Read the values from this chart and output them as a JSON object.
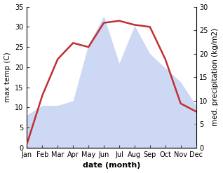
{
  "months": [
    "Jan",
    "Feb",
    "Mar",
    "Apr",
    "May",
    "Jun",
    "Jul",
    "Aug",
    "Sep",
    "Oct",
    "Nov",
    "Dec"
  ],
  "temp": [
    1,
    13,
    22,
    26,
    25,
    31,
    31.5,
    30.5,
    30,
    22,
    11,
    9
  ],
  "precip": [
    7,
    9,
    9,
    10,
    22,
    28,
    18,
    26,
    20,
    17,
    14,
    9
  ],
  "temp_color": "#c03030",
  "precip_fill_color": "#b8c8f0",
  "precip_alpha": 0.7,
  "temp_lw": 1.8,
  "ylim_temp": [
    0,
    35
  ],
  "ylim_precip": [
    0,
    30
  ],
  "yticks_temp": [
    0,
    5,
    10,
    15,
    20,
    25,
    30,
    35
  ],
  "yticks_precip": [
    0,
    5,
    10,
    15,
    20,
    25,
    30
  ],
  "xlabel": "date (month)",
  "ylabel_left": "max temp (C)",
  "ylabel_right": "med. precipitation (kg/m2)",
  "bg_color": "#ffffff",
  "spine_color": "#888888",
  "tick_color": "#444444",
  "label_fontsize": 7,
  "axis_label_fontsize": 7.5,
  "xlabel_fontsize": 8
}
